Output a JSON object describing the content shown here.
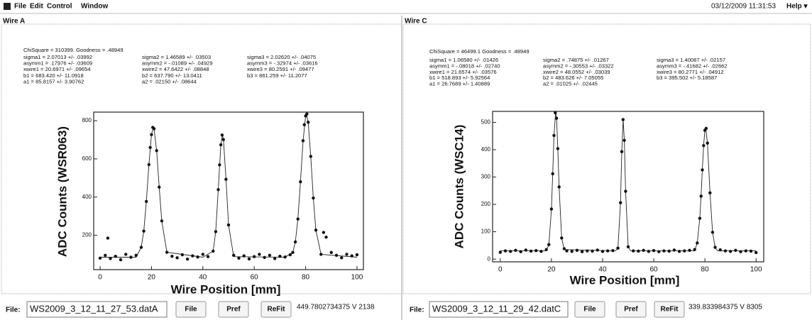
{
  "menu": {
    "items": [
      "File",
      "Edit",
      "Control",
      "Window"
    ],
    "datetime": "03/12/2009 11:31:53",
    "help": "Help ▾"
  },
  "panels": [
    {
      "title": "Wire A",
      "fit": {
        "summary": "ChiSquare = 310399.  Goodness = .48949",
        "columns": [
          [
            "sigma1 = 2.07013 +/- .03992",
            "asymm1 = .17976 +/- .03609",
            "xwire1 = 20.6971 +/- .09654",
            "b1   = 683.420 +/- 11.0918",
            "a1   = 85.8157 +/- 3.90762"
          ],
          [
            "sigma2 = 1.46589 +/- .03503",
            "asymm2 = -.01089 +/- .04929",
            "xwire2 = 47.6422 +/- .08848",
            "b2   = 637.790 +/- 13.0411",
            "a2   = .02150 +/- .08644"
          ],
          [
            "sigma3 = 2.02620 +/- .04075",
            "asymm3 = -.32974 +/- .03616",
            "xwire3 = 80.2591 +/- .09477",
            "b3   = 861.259 +/- 11.2077"
          ]
        ]
      },
      "chart": {
        "type": "scatter",
        "x_label": "Wire Position [mm]",
        "y_label": "ADC Counts (WSR063)",
        "xlim": [
          -2.5,
          102.5
        ],
        "ylim": [
          20,
          845
        ],
        "xticks": [
          0,
          20,
          40,
          60,
          80,
          100
        ],
        "yticks": [
          200,
          400,
          600,
          800
        ],
        "points": {
          "color": "#111111",
          "x": [
            0,
            2,
            3,
            4,
            6,
            8,
            10,
            12,
            14,
            16,
            17,
            18,
            19,
            19.5,
            20,
            20.5,
            21,
            22,
            23,
            24,
            26,
            28,
            30,
            32,
            34,
            36,
            38,
            40,
            42,
            44,
            45,
            46,
            46.5,
            47,
            47.5,
            48,
            49,
            50,
            52,
            54,
            56,
            58,
            60,
            62,
            64,
            66,
            68,
            70,
            72,
            74,
            75,
            76,
            77,
            78,
            79,
            79.5,
            80,
            80.5,
            81,
            82,
            83,
            84,
            86,
            87,
            88,
            90,
            92,
            94,
            96,
            98,
            100
          ],
          "values": [
            80,
            95,
            185,
            78,
            90,
            72,
            100,
            85,
            95,
            137,
            222,
            377,
            570,
            660,
            727,
            765,
            758,
            643,
            452,
            275,
            111,
            90,
            82,
            98,
            75,
            92,
            86,
            100,
            88,
            117,
            219,
            439,
            569,
            674,
            725,
            701,
            493,
            254,
            95,
            80,
            92,
            76,
            88,
            100,
            84,
            95,
            78,
            90,
            86,
            98,
            110,
            165,
            285,
            480,
            695,
            779,
            825,
            835,
            792,
            613,
            395,
            227,
            100,
            215,
            190,
            110,
            95,
            82,
            100,
            92,
            98
          ]
        },
        "fit": {
          "color": "#222222",
          "x": [
            0,
            14,
            16,
            17,
            18,
            19,
            20,
            20.7,
            21,
            22,
            23,
            24,
            26,
            40,
            44,
            45,
            46,
            47,
            47.6,
            48,
            49,
            50,
            52,
            72,
            75,
            76,
            77,
            78,
            79,
            80,
            80.3,
            81,
            82,
            83,
            84,
            86,
            100
          ],
          "values": [
            85,
            85,
            137,
            222,
            377,
            570,
            727,
            765,
            758,
            643,
            452,
            275,
            111,
            85,
            117,
            219,
            439,
            674,
            725,
            701,
            493,
            254,
            88,
            85,
            110,
            165,
            285,
            480,
            695,
            825,
            835,
            792,
            613,
            395,
            227,
            100,
            85
          ]
        }
      },
      "footer": {
        "label": "File:",
        "file": "WS2009_3_12_11_27_53.datA",
        "buttons": [
          "File",
          "Pref",
          "ReFit"
        ],
        "status": "449.7802734375 V  2138"
      }
    },
    {
      "title": "Wire C",
      "fit": {
        "summary": "ChiSquare = 46499.1  Goodness = .48949",
        "columns": [
          [
            "sigma1 = 1.06580 +/- .01426",
            "asymm1 = -.08018 +/- .02740",
            "xwire1 = 21.6574 +/- .03576",
            "b1   = 518.893 +/- 5.92564",
            "a1   = 26.7689 +/- 1.40889"
          ],
          [
            "sigma2 = .74875 +/- .01267",
            "asymm2 = -.30553 +/- .03322",
            "xwire2 = 48.0552 +/- .03039",
            "b2   = 483.626 +/- 7.05055",
            "a2   = .01025 +/- .02445"
          ],
          [
            "sigma3 = 1.40087 +/- .02157",
            "asymm3 = -.41682 +/- .02662",
            "xwire3 = 80.2771 +/- .04912",
            "b3   = 395.502 +/- 5.18587"
          ]
        ]
      },
      "chart": {
        "type": "scatter",
        "x_label": "Wire Position [mm]",
        "y_label": "ADC Counts (WSC14)",
        "xlim": [
          -3,
          103
        ],
        "ylim": [
          -10,
          540
        ],
        "xticks": [
          0,
          20,
          40,
          60,
          80,
          100
        ],
        "yticks": [
          0,
          100,
          200,
          300,
          400,
          500
        ],
        "points": {
          "color": "#111111",
          "x": [
            0,
            2,
            4,
            6,
            8,
            10,
            12,
            14,
            16,
            18,
            19,
            20,
            20.5,
            21,
            21.5,
            22,
            22.5,
            23,
            24,
            25,
            26,
            28,
            30,
            32,
            34,
            36,
            38,
            40,
            42,
            44,
            46,
            47,
            47.5,
            48,
            48.5,
            49,
            50,
            52,
            54,
            56,
            58,
            60,
            62,
            64,
            66,
            68,
            70,
            72,
            74,
            76,
            77,
            78,
            78.5,
            79,
            79.5,
            80,
            80.5,
            81,
            82,
            83,
            84,
            86,
            88,
            90,
            92,
            94,
            96,
            98,
            100
          ],
          "values": [
            25,
            30,
            28,
            32,
            27,
            33,
            29,
            31,
            28,
            35,
            53,
            183,
            312,
            452,
            535,
            515,
            404,
            264,
            77,
            38,
            30,
            28,
            32,
            27,
            30,
            29,
            33,
            28,
            30,
            31,
            40,
            206,
            393,
            510,
            434,
            248,
            45,
            30,
            29,
            32,
            28,
            31,
            27,
            30,
            29,
            33,
            28,
            30,
            32,
            35,
            59,
            149,
            230,
            326,
            415,
            471,
            478,
            424,
            242,
            98,
            43,
            34,
            30,
            28,
            32,
            27,
            30,
            29,
            24
          ]
        },
        "fit": {
          "color": "#222222",
          "x": [
            0,
            18,
            19,
            20,
            20.5,
            21,
            21.66,
            22,
            22.5,
            23,
            24,
            25,
            45,
            46,
            47,
            47.5,
            48.06,
            48.5,
            49,
            50,
            51,
            76,
            77,
            78,
            78.5,
            79,
            79.5,
            80,
            80.3,
            81,
            82,
            83,
            84,
            85,
            100
          ],
          "values": [
            30,
            30,
            53,
            183,
            312,
            452,
            540,
            515,
            404,
            264,
            77,
            35,
            30,
            40,
            206,
            393,
            510,
            434,
            248,
            45,
            30,
            30,
            59,
            149,
            230,
            326,
            415,
            471,
            480,
            424,
            242,
            98,
            43,
            30,
            30
          ]
        }
      },
      "footer": {
        "label": "File:",
        "file": "WS2009_3_12_11_29_42.datC",
        "buttons": [
          "File",
          "Pref",
          "ReFit"
        ],
        "status": "339.833984375 V  8305"
      }
    }
  ]
}
